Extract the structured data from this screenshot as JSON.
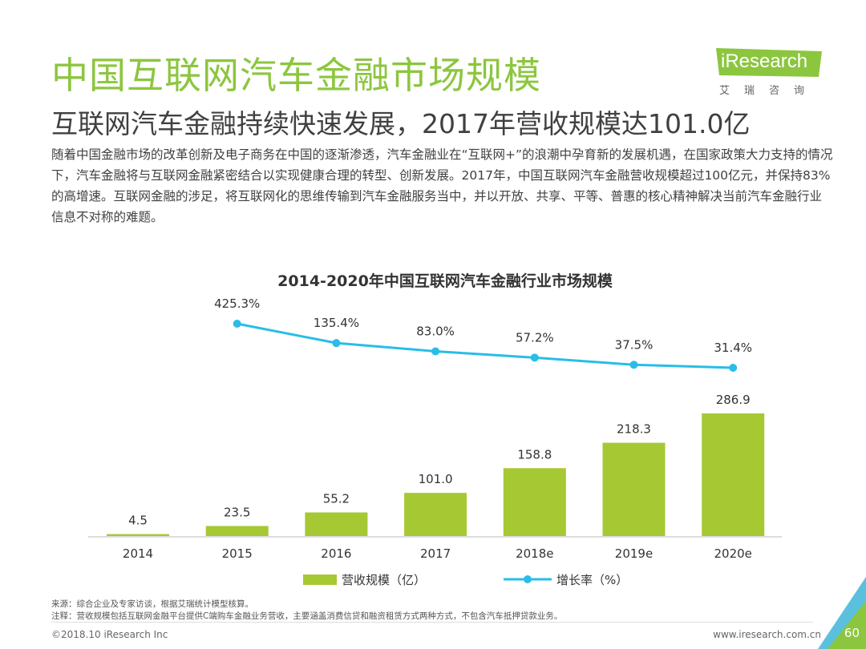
{
  "header": {
    "title": "中国互联网汽车金融市场规模",
    "subtitle": "互联网汽车金融持续快速发展，2017年营收规模达101.0亿",
    "intro": "随着中国金融市场的改革创新及电子商务在中国的逐渐渗透，汽车金融业在“互联网+”的浪潮中孕育新的发展机遇，在国家政策大力支持的情况下，汽车金融将与互联网金融紧密结合以实现健康合理的转型、创新发展。2017年，中国互联网汽车金融营收规模超过100亿元，并保持83%的高增速。互联网金融的涉足，将互联网化的思维传输到汽车金融服务当中，并以开放、共享、平等、普惠的核心精神解决当前汽车金融行业信息不对称的难题。"
  },
  "logo": {
    "brand": "iResearch",
    "tagline": "艾瑞咨询"
  },
  "chart_data": {
    "type": "bar+line",
    "title": "2014-2020年中国互联网汽车金融行业市场规模",
    "categories": [
      "2014",
      "2015",
      "2016",
      "2017",
      "2018e",
      "2019e",
      "2020e"
    ],
    "series": [
      {
        "name": "营收规模（亿）",
        "type": "bar",
        "color": "#a6c833",
        "values": [
          4.5,
          23.5,
          55.2,
          101.0,
          158.8,
          218.3,
          286.9
        ],
        "labels": [
          "4.5",
          "23.5",
          "55.2",
          "101.0",
          "158.8",
          "218.3",
          "286.9"
        ]
      },
      {
        "name": "增长率（%）",
        "type": "line",
        "color": "#29bde8",
        "values": [
          null,
          425.3,
          135.4,
          83.0,
          57.2,
          37.5,
          31.4
        ],
        "labels": [
          "",
          "425.3%",
          "135.4%",
          "83.0%",
          "57.2%",
          "37.5%",
          "31.4%"
        ]
      }
    ],
    "legend_position": "bottom"
  },
  "footer": {
    "source": "来源：综合企业及专家访谈，根据艾瑞统计模型核算。",
    "note": "注释：营收规模包括互联网金融平台提供C端购车金融业务营收，主要涵盖消费信贷和融资租赁方式两种方式，不包含汽车抵押贷款业务。",
    "copyright": "©2018.10 iResearch Inc",
    "site": "www.iresearch.com.cn",
    "page": "60"
  },
  "colors": {
    "accent": "#8cc63f",
    "bar": "#a6c833",
    "line": "#29bde8"
  }
}
